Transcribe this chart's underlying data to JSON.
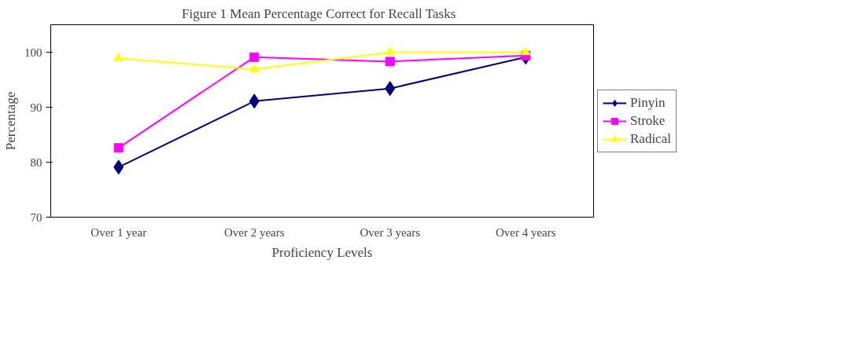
{
  "chart_data": {
    "type": "line",
    "title": "Figure 1  Mean Percentage Correct for  Recall Tasks",
    "xlabel": "Proficiency Levels",
    "ylabel": "Percentage",
    "categories": [
      "Over 1 year",
      "Over 2 years",
      "Over 3 years",
      "Over 4 years"
    ],
    "series": [
      {
        "name": "Pinyin",
        "color": "#000080",
        "marker": "diamond",
        "values": [
          79.1,
          91.1,
          93.4,
          99.1
        ]
      },
      {
        "name": "Stroke",
        "color": "#ff00ff",
        "marker": "square",
        "values": [
          82.6,
          99.1,
          98.3,
          99.4
        ]
      },
      {
        "name": "Radical",
        "color": "#ffff00",
        "marker": "triangle",
        "values": [
          98.9,
          96.9,
          100,
          100
        ]
      }
    ],
    "ylim": [
      70,
      105
    ],
    "yticks": [
      70,
      80,
      90,
      100
    ],
    "grid": false,
    "legend": "right"
  }
}
